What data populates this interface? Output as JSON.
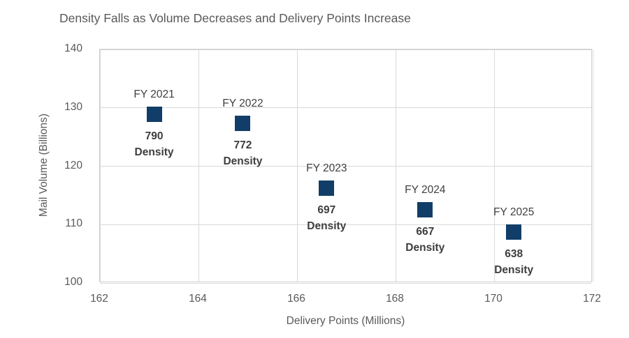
{
  "title": "Density Falls as Volume Decreases and Delivery Points Increase",
  "chart_data": {
    "type": "scatter",
    "title": "Density Falls as Volume Decreases and Delivery Points Increase",
    "xlabel": "Delivery Points (Millions)",
    "ylabel": "Mail Volume (Billions)",
    "xlim": [
      162,
      172
    ],
    "ylim": [
      100,
      140
    ],
    "x_ticks": [
      162,
      164,
      166,
      168,
      170,
      172
    ],
    "y_ticks": [
      100,
      110,
      120,
      130,
      140
    ],
    "grid": true,
    "legend": "none",
    "marker": "square",
    "marker_color": "#113E68",
    "density_word": "Density",
    "points": [
      {
        "label": "FY 2021",
        "x": 163.1,
        "y": 128.9,
        "density": "790"
      },
      {
        "label": "FY 2022",
        "x": 164.9,
        "y": 127.3,
        "density": "772"
      },
      {
        "label": "FY 2023",
        "x": 166.6,
        "y": 116.2,
        "density": "697"
      },
      {
        "label": "FY 2024",
        "x": 168.6,
        "y": 112.5,
        "density": "667"
      },
      {
        "label": "FY 2025",
        "x": 170.4,
        "y": 108.7,
        "density": "638"
      }
    ]
  },
  "colors": {
    "marker": "#113E68",
    "axis_text": "#595959",
    "label_text": "#404040",
    "gridline": "#D9D9D9",
    "background": "#FFFFFF"
  }
}
